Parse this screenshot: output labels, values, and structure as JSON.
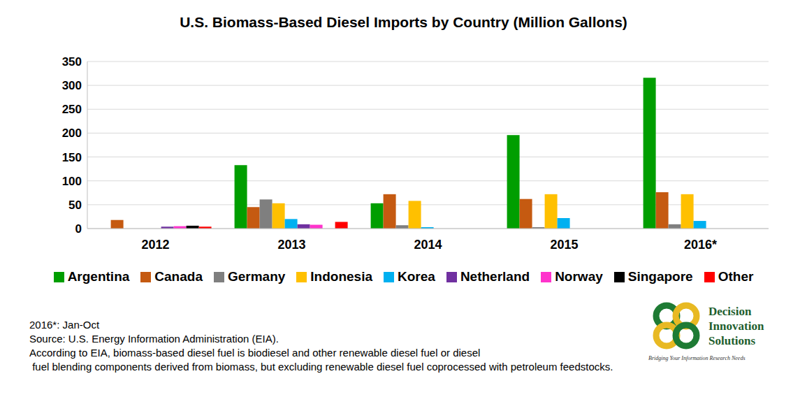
{
  "chart_data": {
    "type": "bar",
    "title": "U.S. Biomass-Based Diesel Imports by Country (Million Gallons)",
    "categories": [
      "2012",
      "2013",
      "2014",
      "2015",
      "2016*"
    ],
    "series": [
      {
        "name": "Argentina",
        "color": "#009e00",
        "values": [
          0,
          133,
          53,
          196,
          316
        ]
      },
      {
        "name": "Canada",
        "color": "#c55a11",
        "values": [
          18,
          45,
          72,
          62,
          76
        ]
      },
      {
        "name": "Germany",
        "color": "#7f7f7f",
        "values": [
          0,
          61,
          7,
          3,
          9
        ]
      },
      {
        "name": "Indonesia",
        "color": "#ffc000",
        "values": [
          0,
          53,
          58,
          72,
          72
        ]
      },
      {
        "name": "Korea",
        "color": "#00b0f0",
        "values": [
          0,
          20,
          3,
          22,
          16
        ]
      },
      {
        "name": "Netherland",
        "color": "#7030a0",
        "values": [
          4,
          9,
          0,
          0,
          0
        ]
      },
      {
        "name": "Norway",
        "color": "#ff33cc",
        "values": [
          5,
          8,
          0,
          0,
          0
        ]
      },
      {
        "name": "Singapore",
        "color": "#000000",
        "values": [
          6,
          0,
          0,
          0,
          0
        ]
      },
      {
        "name": "Other",
        "color": "#ff0000",
        "values": [
          4,
          14,
          0,
          0,
          0
        ]
      }
    ],
    "ylim": [
      0,
      350
    ],
    "yticks": [
      0,
      50,
      100,
      150,
      200,
      250,
      300,
      350
    ],
    "grid": true,
    "legend": "bottom",
    "notes": [
      "2016*: Jan-Oct",
      "Source: U.S. Energy Information Administration (EIA).",
      "According to EIA, biomass-based diesel fuel is biodiesel and other renewable diesel fuel or diesel",
      " fuel blending components derived from biomass, but excluding renewable diesel fuel coprocessed with petroleum feedstocks."
    ],
    "logo": {
      "name": [
        "Decision",
        "Innovation",
        "Solutions"
      ],
      "tagline": "Bridging Your Information Research Needs"
    }
  }
}
